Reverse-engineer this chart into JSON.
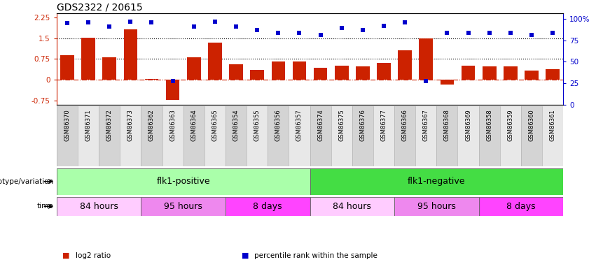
{
  "title": "GDS2322 / 20615",
  "samples": [
    "GSM86370",
    "GSM86371",
    "GSM86372",
    "GSM86373",
    "GSM86362",
    "GSM86363",
    "GSM86364",
    "GSM86365",
    "GSM86354",
    "GSM86355",
    "GSM86356",
    "GSM86357",
    "GSM86374",
    "GSM86375",
    "GSM86376",
    "GSM86377",
    "GSM86366",
    "GSM86367",
    "GSM86368",
    "GSM86369",
    "GSM86358",
    "GSM86359",
    "GSM86360",
    "GSM86361"
  ],
  "log2_ratio": [
    0.88,
    1.52,
    0.82,
    1.82,
    0.02,
    -0.72,
    0.82,
    1.35,
    0.55,
    0.35,
    0.65,
    0.65,
    0.42,
    0.52,
    0.48,
    0.6,
    1.05,
    1.48,
    -0.18,
    0.52,
    0.48,
    0.48,
    0.32,
    0.38
  ],
  "percentile": [
    95,
    96,
    91,
    97,
    96,
    28,
    91,
    97,
    91,
    87,
    84,
    84,
    81,
    89,
    87,
    92,
    96,
    28,
    84,
    84,
    84,
    84,
    81,
    84
  ],
  "bar_color": "#cc2200",
  "dot_color": "#0000cc",
  "hline_color": "#cc2200",
  "dotted_line_color": "#000000",
  "ylim_left": [
    -0.9,
    2.4
  ],
  "yticks_left": [
    -0.75,
    0,
    0.75,
    1.5,
    2.25
  ],
  "ylim_right": [
    0,
    106.67
  ],
  "yticks_right": [
    0,
    25,
    50,
    75,
    100
  ],
  "yticklabels_right": [
    "0",
    "25",
    "50",
    "75",
    "100%"
  ],
  "dotted_hlines": [
    0.75,
    1.5
  ],
  "genotype_groups": [
    {
      "label": "flk1-positive",
      "start": 0,
      "end": 12,
      "color": "#aaffaa"
    },
    {
      "label": "flk1-negative",
      "start": 12,
      "end": 24,
      "color": "#44dd44"
    }
  ],
  "time_groups": [
    {
      "label": "84 hours",
      "start": 0,
      "end": 4,
      "color": "#ffccff"
    },
    {
      "label": "95 hours",
      "start": 4,
      "end": 8,
      "color": "#ee88ee"
    },
    {
      "label": "8 days",
      "start": 8,
      "end": 12,
      "color": "#ff44ff"
    },
    {
      "label": "84 hours",
      "start": 12,
      "end": 16,
      "color": "#ffccff"
    },
    {
      "label": "95 hours",
      "start": 16,
      "end": 20,
      "color": "#ee88ee"
    },
    {
      "label": "8 days",
      "start": 20,
      "end": 24,
      "color": "#ff44ff"
    }
  ],
  "genotype_label": "genotype/variation",
  "time_label": "time",
  "legend_items": [
    {
      "label": "log2 ratio",
      "color": "#cc2200"
    },
    {
      "label": "percentile rank within the sample",
      "color": "#0000cc"
    }
  ],
  "bg_color": "#ffffff"
}
